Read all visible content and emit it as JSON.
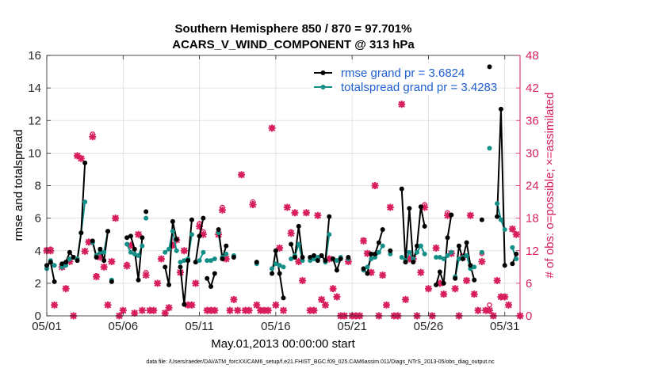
{
  "chart_data": {
    "type": "line",
    "title_line1": "Southern Hemisphere 850 / 870 = 97.701%",
    "title_line2": "ACARS_V_WIND_COMPONENT @ 313 hPa",
    "xlabel": "May.01,2013 00:00:00 start",
    "ylabel_left": "rmse and totalspread",
    "ylabel_right": "# of obs: o=possible; ×=assimilated",
    "footer": "data file: /Users/raeder/DAI/ATM_forcXX/CAM6_setup/f.e21.FHIST_BGC.f09_025.CAM6assim.011/Diags_NTrS_2013-05/obs_diag_output.nc",
    "xlim": [
      1,
      32
    ],
    "ylim_left": [
      0,
      16
    ],
    "ylim_right": [
      0,
      48
    ],
    "xticks": [
      1,
      6,
      11,
      16,
      21,
      26,
      31
    ],
    "xtick_labels": [
      "05/01",
      "05/06",
      "05/11",
      "05/16",
      "05/21",
      "05/26",
      "05/31"
    ],
    "yticks_left": [
      0,
      2,
      4,
      6,
      8,
      10,
      12,
      14,
      16
    ],
    "yticks_right": [
      0,
      6,
      12,
      18,
      24,
      30,
      36,
      42,
      48
    ],
    "colors": {
      "rmse": "#000000",
      "spread": "#138f87",
      "obs": "#d81e5b"
    },
    "legend": {
      "position": "top-right",
      "rmse_label": "rmse grand pr = 3.6824",
      "spread_label": "totalspread grand pr = 3.4283"
    },
    "segments": [
      [
        [
          1.0,
          3.1,
          2.9
        ],
        [
          1.25,
          3.3,
          3.4
        ],
        [
          1.5,
          2.1,
          3.1
        ]
      ],
      [
        [
          2.0,
          3.2,
          3.0
        ],
        [
          2.25,
          3.3,
          3.1
        ],
        [
          2.5,
          3.9,
          3.5
        ],
        [
          2.75,
          3.6,
          3.6
        ],
        [
          3.0,
          3.4,
          3.5
        ],
        [
          3.25,
          5.1,
          5.1
        ],
        [
          3.5,
          9.4,
          7.0
        ]
      ],
      [
        [
          4.0,
          4.6,
          4.5
        ],
        [
          4.25,
          3.6,
          3.7
        ],
        [
          4.5,
          4.1,
          3.9
        ],
        [
          4.75,
          3.4,
          3.9
        ],
        [
          5.0,
          5.2,
          5.2
        ]
      ],
      [
        [
          5.25,
          2.1,
          2.2
        ]
      ],
      [
        [
          6.25,
          4.8,
          4.4
        ],
        [
          6.5,
          4.9,
          3.9
        ],
        [
          6.75,
          4.1,
          3.8
        ],
        [
          7.0,
          2.2,
          3.7
        ],
        [
          7.25,
          4.8,
          4.3
        ]
      ],
      [
        [
          7.5,
          6.4,
          6.0
        ]
      ],
      [
        [
          8.75,
          3.0,
          3.9
        ],
        [
          9.0,
          1.9,
          4.1
        ],
        [
          9.25,
          5.8,
          5.2
        ],
        [
          9.5,
          4.7,
          4.0
        ]
      ],
      [
        [
          9.75,
          3.0,
          3.3
        ],
        [
          10.0,
          0.7,
          3.4
        ],
        [
          10.25,
          3.4,
          3.5
        ],
        [
          10.5,
          5.9,
          5.0
        ]
      ],
      [
        [
          10.75,
          3.3,
          3.3
        ],
        [
          11.0,
          4.9,
          3.4
        ],
        [
          11.25,
          6.0,
          3.9
        ]
      ],
      [
        [
          11.5,
          2.3,
          3.4
        ],
        [
          11.75,
          1.8,
          3.4
        ],
        [
          12.0,
          2.6,
          3.5
        ]
      ],
      [
        [
          12.25,
          5.3,
          5.1
        ],
        [
          12.5,
          3.5,
          3.6
        ],
        [
          12.75,
          4.3,
          3.8
        ]
      ],
      [
        [
          13.25,
          3.6,
          3.7
        ]
      ],
      [
        [
          14.75,
          3.3,
          3.2
        ]
      ],
      [
        [
          15.75,
          2.6,
          2.9
        ],
        [
          16.0,
          4.0,
          3.2
        ],
        [
          16.25,
          2.6,
          3.1
        ],
        [
          16.5,
          1.1,
          3.0
        ]
      ],
      [
        [
          17.0,
          4.4,
          3.5
        ],
        [
          17.25,
          3.6,
          3.7
        ],
        [
          17.5,
          5.5,
          4.4
        ],
        [
          17.75,
          3.6,
          3.4
        ]
      ],
      [
        [
          18.25,
          3.6,
          3.4
        ],
        [
          18.5,
          3.7,
          3.5
        ],
        [
          18.75,
          3.4,
          3.6
        ],
        [
          19.0,
          3.7,
          3.7
        ],
        [
          19.25,
          3.4,
          3.3
        ],
        [
          19.5,
          6.1,
          5.0
        ]
      ],
      [
        [
          19.75,
          3.5,
          3.5
        ],
        [
          20.0,
          2.8,
          3.4
        ],
        [
          20.25,
          3.5,
          3.6
        ]
      ],
      [
        [
          20.75,
          3.6,
          3.5
        ]
      ],
      [
        [
          21.75,
          2.9,
          2.8
        ],
        [
          22.0,
          2.6,
          3.0
        ],
        [
          22.25,
          3.8,
          3.5
        ],
        [
          22.5,
          3.8,
          3.6
        ],
        [
          22.75,
          4.5,
          3.9
        ],
        [
          23.0,
          5.3,
          4.3
        ]
      ],
      [
        [
          23.5,
          4.0,
          3.8
        ]
      ],
      [
        [
          24.25,
          7.8,
          3.6
        ],
        [
          24.5,
          3.3,
          3.4
        ],
        [
          24.75,
          6.6,
          3.9
        ],
        [
          25.0,
          3.3,
          3.5
        ],
        [
          25.25,
          4.3,
          3.9
        ],
        [
          25.5,
          6.7,
          4.3
        ],
        [
          25.75,
          5.5,
          3.8
        ]
      ],
      [
        [
          26.5,
          1.9,
          3.6
        ],
        [
          26.75,
          2.7,
          3.6
        ],
        [
          27.0,
          2.0,
          3.5
        ],
        [
          27.25,
          4.8,
          3.7
        ],
        [
          27.5,
          6.2,
          3.9
        ]
      ],
      [
        [
          27.75,
          2.3,
          2.4
        ],
        [
          28.0,
          4.3,
          3.5
        ],
        [
          28.25,
          3.5,
          3.6
        ],
        [
          28.5,
          4.5,
          3.7
        ],
        [
          28.75,
          3.1,
          2.9
        ],
        [
          29.0,
          2.2,
          3.0
        ]
      ],
      [
        [
          29.5,
          5.9,
          3.9
        ]
      ],
      [
        [
          30.0,
          15.3,
          10.3
        ]
      ],
      [
        [
          30.5,
          6.1,
          6.9
        ],
        [
          30.75,
          12.7,
          5.9
        ],
        [
          31.0,
          3.1,
          5.3
        ]
      ],
      [
        [
          31.5,
          3.2,
          4.2
        ],
        [
          31.75,
          3.8,
          3.5
        ]
      ]
    ],
    "obs_possible": [
      [
        1.0,
        12.2
      ],
      [
        1.25,
        12.3
      ],
      [
        1.5,
        2.0
      ],
      [
        2.0,
        9.0
      ],
      [
        2.25,
        5.1
      ],
      [
        2.5,
        10.2
      ],
      [
        2.75,
        0.0
      ],
      [
        3.0,
        29.5
      ],
      [
        3.25,
        29.0
      ],
      [
        3.5,
        11.9
      ],
      [
        3.75,
        13.6
      ],
      [
        4.0,
        33.5
      ],
      [
        4.25,
        7.4
      ],
      [
        4.5,
        11.0
      ],
      [
        4.75,
        9.0
      ],
      [
        5.0,
        2.0
      ],
      [
        5.25,
        10.0
      ],
      [
        5.5,
        18.0
      ],
      [
        5.75,
        0.0
      ],
      [
        6.0,
        1.0
      ],
      [
        6.25,
        9.5
      ],
      [
        6.5,
        13.0
      ],
      [
        6.75,
        0.5
      ],
      [
        7.0,
        15.0
      ],
      [
        7.25,
        1.0
      ],
      [
        7.5,
        8.0
      ],
      [
        7.75,
        1.0
      ],
      [
        8.0,
        1.0
      ],
      [
        8.25,
        6.0
      ],
      [
        8.5,
        10.5
      ],
      [
        8.75,
        0.5
      ],
      [
        9.0,
        1.5
      ],
      [
        9.25,
        13.0
      ],
      [
        9.5,
        14.0
      ],
      [
        9.75,
        8.0
      ],
      [
        10.0,
        12.0
      ],
      [
        10.25,
        2.0
      ],
      [
        10.5,
        2.0
      ],
      [
        10.75,
        6.0
      ],
      [
        11.0,
        17.0
      ],
      [
        11.25,
        15.5
      ],
      [
        11.5,
        1.0
      ],
      [
        11.75,
        1.0
      ],
      [
        12.0,
        1.0
      ],
      [
        12.25,
        15.0
      ],
      [
        12.5,
        20.0
      ],
      [
        12.75,
        10.5
      ],
      [
        13.0,
        1.0
      ],
      [
        13.25,
        3.0
      ],
      [
        13.5,
        1.0
      ],
      [
        13.75,
        26.0
      ],
      [
        14.0,
        1.0
      ],
      [
        14.25,
        1.0
      ],
      [
        14.5,
        21.0
      ],
      [
        14.75,
        2.0
      ],
      [
        15.0,
        1.0
      ],
      [
        15.25,
        1.0
      ],
      [
        15.5,
        1.0
      ],
      [
        15.75,
        34.6
      ],
      [
        16.0,
        2.0
      ],
      [
        16.25,
        12.5
      ],
      [
        16.5,
        1.0
      ],
      [
        16.75,
        20.0
      ],
      [
        17.0,
        15.5
      ],
      [
        17.25,
        19.0
      ],
      [
        17.5,
        10.0
      ],
      [
        17.75,
        6.5
      ],
      [
        18.0,
        19.0
      ],
      [
        18.25,
        1.0
      ],
      [
        18.5,
        1.0
      ],
      [
        18.75,
        18.5
      ],
      [
        19.0,
        3.0
      ],
      [
        19.25,
        2.0
      ],
      [
        19.5,
        10.5
      ],
      [
        19.75,
        5.0
      ],
      [
        20.0,
        3.5
      ],
      [
        20.25,
        0.0
      ],
      [
        20.5,
        0.0
      ],
      [
        20.75,
        10.0
      ],
      [
        21.0,
        0.0
      ],
      [
        21.25,
        0.0
      ],
      [
        21.5,
        0.0
      ],
      [
        21.75,
        14.0
      ],
      [
        22.0,
        11.5
      ],
      [
        22.25,
        8.0
      ],
      [
        22.5,
        24.0
      ],
      [
        22.75,
        0.0
      ],
      [
        23.0,
        7.5
      ],
      [
        23.25,
        2.0
      ],
      [
        23.5,
        20.0
      ],
      [
        23.75,
        0.0
      ],
      [
        24.0,
        0.0
      ],
      [
        24.25,
        39.0
      ],
      [
        24.5,
        3.0
      ],
      [
        24.75,
        10.5
      ],
      [
        25.0,
        10.5
      ],
      [
        25.25,
        0.0
      ],
      [
        25.5,
        8.0
      ],
      [
        25.75,
        20.5
      ],
      [
        26.0,
        5.0
      ],
      [
        26.25,
        0.0
      ],
      [
        26.5,
        12.5
      ],
      [
        26.75,
        6.0
      ],
      [
        27.0,
        4.0
      ],
      [
        27.25,
        19.0
      ],
      [
        27.5,
        11.5
      ],
      [
        27.75,
        5.0
      ],
      [
        28.0,
        0.0
      ],
      [
        28.25,
        11.0
      ],
      [
        28.5,
        6.5
      ],
      [
        28.75,
        18.5
      ],
      [
        29.0,
        4.0
      ],
      [
        29.25,
        1.0
      ],
      [
        29.5,
        11.5
      ],
      [
        29.75,
        1.0
      ],
      [
        30.0,
        2.0
      ],
      [
        30.25,
        0.0
      ],
      [
        30.5,
        6.5
      ],
      [
        30.75,
        3.5
      ],
      [
        31.0,
        3.5
      ],
      [
        31.25,
        2.0
      ],
      [
        31.5,
        16.0
      ],
      [
        31.75,
        15.0
      ],
      [
        32.0,
        0.0
      ]
    ],
    "obs_assimilated": [
      [
        1.0,
        12.0
      ],
      [
        1.25,
        12.0
      ],
      [
        1.5,
        2.0
      ],
      [
        2.0,
        9.0
      ],
      [
        2.25,
        5.0
      ],
      [
        2.5,
        10.0
      ],
      [
        2.75,
        0.0
      ],
      [
        3.0,
        29.5
      ],
      [
        3.25,
        29.0
      ],
      [
        3.5,
        11.9
      ],
      [
        3.75,
        13.6
      ],
      [
        4.0,
        33.0
      ],
      [
        4.25,
        7.2
      ],
      [
        4.5,
        10.8
      ],
      [
        4.75,
        9.0
      ],
      [
        5.0,
        2.0
      ],
      [
        5.25,
        10.0
      ],
      [
        5.5,
        18.0
      ],
      [
        5.75,
        0.0
      ],
      [
        6.0,
        1.0
      ],
      [
        6.25,
        9.2
      ],
      [
        6.5,
        13.0
      ],
      [
        6.75,
        0.5
      ],
      [
        7.0,
        15.0
      ],
      [
        7.25,
        1.0
      ],
      [
        7.5,
        7.5
      ],
      [
        7.75,
        1.0
      ],
      [
        8.0,
        1.0
      ],
      [
        8.25,
        6.0
      ],
      [
        8.5,
        10.5
      ],
      [
        8.75,
        0.5
      ],
      [
        9.0,
        1.5
      ],
      [
        9.25,
        13.0
      ],
      [
        9.5,
        14.0
      ],
      [
        9.75,
        8.0
      ],
      [
        10.0,
        12.0
      ],
      [
        10.25,
        2.0
      ],
      [
        10.5,
        2.0
      ],
      [
        10.75,
        6.0
      ],
      [
        11.0,
        16.5
      ],
      [
        11.25,
        15.0
      ],
      [
        11.5,
        1.0
      ],
      [
        11.75,
        1.0
      ],
      [
        12.0,
        1.0
      ],
      [
        12.25,
        15.0
      ],
      [
        12.5,
        19.5
      ],
      [
        12.75,
        10.5
      ],
      [
        13.0,
        1.0
      ],
      [
        13.25,
        3.0
      ],
      [
        13.5,
        1.0
      ],
      [
        13.75,
        26.0
      ],
      [
        14.0,
        1.0
      ],
      [
        14.25,
        1.0
      ],
      [
        14.5,
        20.5
      ],
      [
        14.75,
        2.0
      ],
      [
        15.0,
        1.0
      ],
      [
        15.25,
        1.0
      ],
      [
        15.5,
        1.0
      ],
      [
        15.75,
        34.6
      ],
      [
        16.0,
        2.0
      ],
      [
        16.25,
        12.5
      ],
      [
        16.5,
        1.0
      ],
      [
        16.75,
        20.0
      ],
      [
        17.0,
        15.2
      ],
      [
        17.25,
        19.0
      ],
      [
        17.5,
        10.0
      ],
      [
        17.75,
        6.5
      ],
      [
        18.0,
        19.0
      ],
      [
        18.25,
        1.0
      ],
      [
        18.5,
        1.0
      ],
      [
        18.75,
        18.5
      ],
      [
        19.0,
        3.0
      ],
      [
        19.25,
        2.0
      ],
      [
        19.5,
        10.5
      ],
      [
        19.75,
        5.0
      ],
      [
        20.0,
        3.5
      ],
      [
        20.25,
        0.0
      ],
      [
        20.5,
        0.0
      ],
      [
        20.75,
        10.0
      ],
      [
        21.0,
        0.0
      ],
      [
        21.25,
        0.0
      ],
      [
        21.5,
        0.0
      ],
      [
        21.75,
        13.8
      ],
      [
        22.0,
        11.5
      ],
      [
        22.25,
        8.0
      ],
      [
        22.5,
        24.0
      ],
      [
        22.75,
        0.0
      ],
      [
        23.0,
        7.5
      ],
      [
        23.25,
        2.0
      ],
      [
        23.5,
        20.0
      ],
      [
        23.75,
        0.0
      ],
      [
        24.0,
        0.0
      ],
      [
        24.25,
        39.0
      ],
      [
        24.5,
        3.0
      ],
      [
        24.75,
        10.5
      ],
      [
        25.0,
        10.5
      ],
      [
        25.25,
        0.0
      ],
      [
        25.5,
        8.0
      ],
      [
        25.75,
        20.0
      ],
      [
        26.0,
        5.0
      ],
      [
        26.25,
        0.0
      ],
      [
        26.5,
        12.5
      ],
      [
        26.75,
        6.0
      ],
      [
        27.0,
        4.0
      ],
      [
        27.25,
        18.5
      ],
      [
        27.5,
        11.5
      ],
      [
        27.75,
        5.0
      ],
      [
        28.0,
        0.0
      ],
      [
        28.25,
        10.8
      ],
      [
        28.5,
        6.5
      ],
      [
        28.75,
        18.5
      ],
      [
        29.0,
        4.0
      ],
      [
        29.25,
        1.0
      ],
      [
        29.5,
        10.0
      ],
      [
        29.75,
        1.0
      ],
      [
        30.0,
        1.0
      ],
      [
        30.25,
        0.0
      ],
      [
        30.5,
        6.5
      ],
      [
        30.75,
        3.5
      ],
      [
        31.0,
        3.5
      ],
      [
        31.25,
        2.0
      ],
      [
        31.5,
        16.0
      ],
      [
        31.75,
        15.0
      ],
      [
        32.0,
        0.0
      ]
    ]
  }
}
